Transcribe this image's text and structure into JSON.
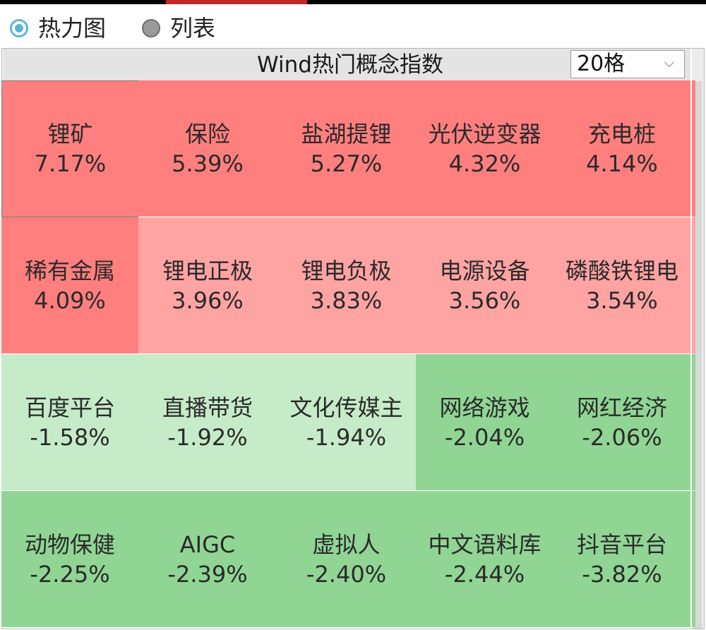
{
  "view_switch": {
    "options": [
      {
        "label": "热力图",
        "selected": true
      },
      {
        "label": "列表",
        "selected": false
      }
    ]
  },
  "panel": {
    "title": "Wind热门概念指数",
    "grid_size": {
      "value": "20格"
    }
  },
  "colors": {
    "strong_up": "#ff7f7f",
    "up": "#ffa3a3",
    "strong_down": "#90d594",
    "down": "#c6ebc8"
  },
  "cells": [
    {
      "name": "锂矿",
      "change": "7.17%",
      "level": "strong_up"
    },
    {
      "name": "保险",
      "change": "5.39%",
      "level": "strong_up"
    },
    {
      "name": "盐湖提锂",
      "change": "5.27%",
      "level": "strong_up"
    },
    {
      "name": "光伏逆变器",
      "change": "4.32%",
      "level": "strong_up"
    },
    {
      "name": "充电桩",
      "change": "4.14%",
      "level": "strong_up"
    },
    {
      "name": "稀有金属",
      "change": "4.09%",
      "level": "strong_up"
    },
    {
      "name": "锂电正极",
      "change": "3.96%",
      "level": "up"
    },
    {
      "name": "锂电负极",
      "change": "3.83%",
      "level": "up"
    },
    {
      "name": "电源设备",
      "change": "3.56%",
      "level": "up"
    },
    {
      "name": "磷酸铁锂电",
      "change": "3.54%",
      "level": "up"
    },
    {
      "name": "百度平台",
      "change": "-1.58%",
      "level": "down"
    },
    {
      "name": "直播带货",
      "change": "-1.92%",
      "level": "down"
    },
    {
      "name": "文化传媒主",
      "change": "-1.94%",
      "level": "down"
    },
    {
      "name": "网络游戏",
      "change": "-2.04%",
      "level": "strong_down"
    },
    {
      "name": "网红经济",
      "change": "-2.06%",
      "level": "strong_down"
    },
    {
      "name": "动物保健",
      "change": "-2.25%",
      "level": "strong_down"
    },
    {
      "name": "AIGC",
      "change": "-2.39%",
      "level": "strong_down"
    },
    {
      "name": "虚拟人",
      "change": "-2.40%",
      "level": "strong_down"
    },
    {
      "name": "中文语料库",
      "change": "-2.44%",
      "level": "strong_down"
    },
    {
      "name": "抖音平台",
      "change": "-3.82%",
      "level": "strong_down"
    }
  ]
}
